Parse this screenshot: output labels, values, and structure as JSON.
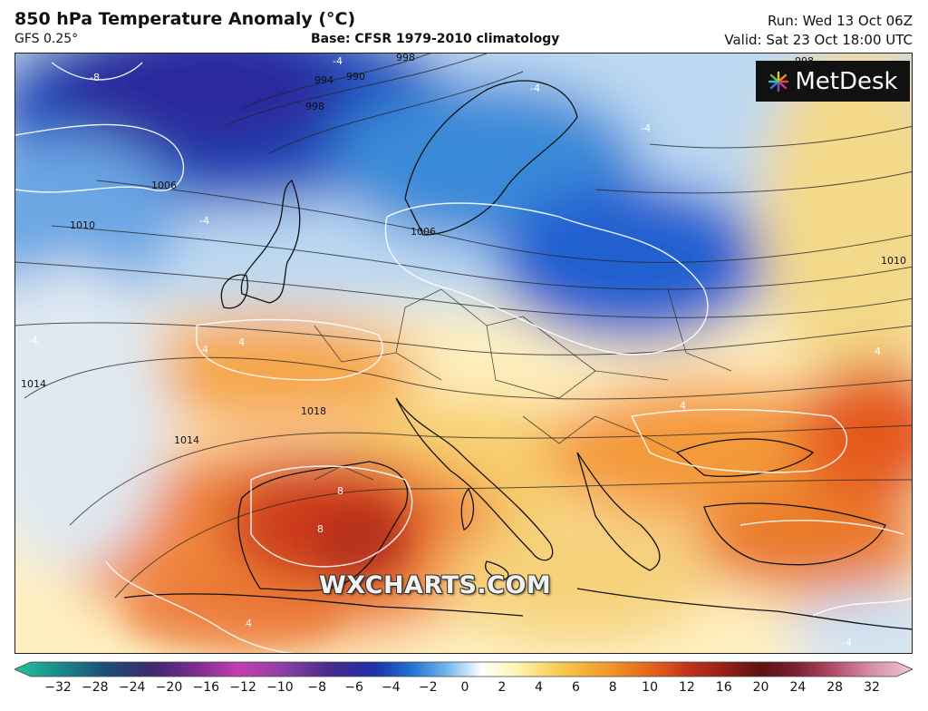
{
  "header": {
    "title": "850 hPa Temperature Anomaly (°C)",
    "model": "GFS 0.25°",
    "base": "Base: CFSR 1979-2010 climatology",
    "run": "Run: Wed 13 Oct 06Z",
    "valid": "Valid: Sat 23 Oct 18:00 UTC"
  },
  "logo": {
    "text": "MetDesk",
    "icon": "metdesk-burst-icon"
  },
  "watermark": "WXCHARTS.COM",
  "isobar_labels": [
    "998",
    "994",
    "990",
    "998",
    "1006",
    "1010",
    "1006",
    "1014",
    "1018",
    "1014",
    "1010",
    "998"
  ],
  "anomaly_labels": [
    "-8",
    "-4",
    "-4",
    "-4",
    "-4",
    "-4",
    "4",
    "4",
    "8",
    "8",
    "4",
    "4",
    "4",
    "-4"
  ],
  "colorbar": {
    "ticks": [
      "−32",
      "−28",
      "−24",
      "−20",
      "−16",
      "−12",
      "−10",
      "−8",
      "−6",
      "−4",
      "−2",
      "0",
      "2",
      "4",
      "6",
      "8",
      "10",
      "12",
      "16",
      "20",
      "24",
      "28",
      "32"
    ],
    "colors": [
      "#27c39a",
      "#1b8a8a",
      "#1d4f7a",
      "#3b2a6e",
      "#7a2b8e",
      "#c43fb0",
      "#8c3fa5",
      "#4a2a8a",
      "#1f2fa8",
      "#1e6fd0",
      "#6fb3ea",
      "#ffffff",
      "#fff3b0",
      "#f6c84a",
      "#f29a2a",
      "#e4621c",
      "#c0341a",
      "#962018",
      "#5c1212",
      "#7a2030",
      "#b04a66",
      "#d488a6",
      "#f2c8d6"
    ]
  }
}
